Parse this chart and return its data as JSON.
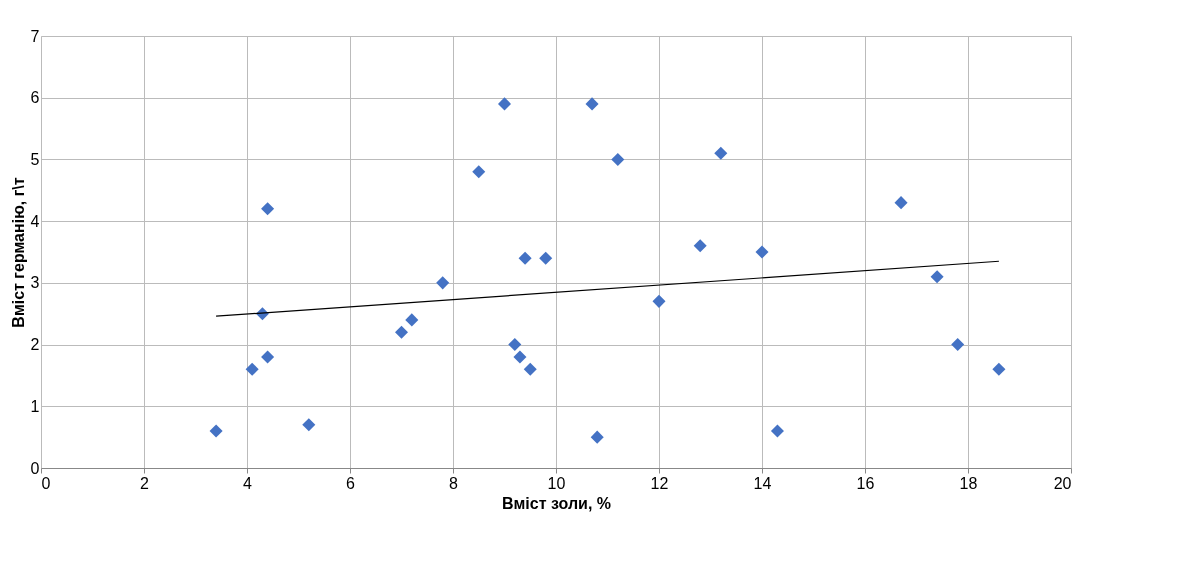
{
  "chart_data": {
    "type": "scatter",
    "xlabel": "Вміст золи, %",
    "ylabel": "Вміст германію, г\\т",
    "x": [
      3.4,
      4.1,
      4.3,
      4.4,
      4.4,
      5.2,
      7.0,
      7.2,
      7.8,
      8.5,
      9.0,
      9.2,
      9.3,
      9.4,
      9.5,
      9.8,
      10.7,
      10.8,
      11.2,
      12.0,
      12.8,
      13.2,
      14.0,
      14.3,
      16.7,
      17.4,
      17.8,
      18.6
    ],
    "series": [
      {
        "color": "#4472c4",
        "marker": "diamond",
        "values": [
          0.6,
          1.6,
          2.5,
          1.8,
          4.2,
          0.7,
          2.2,
          2.4,
          3.0,
          4.8,
          5.9,
          2.0,
          1.8,
          3.4,
          1.6,
          3.4,
          5.9,
          0.5,
          5.0,
          2.7,
          3.6,
          5.1,
          3.5,
          0.6,
          4.3,
          3.1,
          2.0,
          1.6
        ]
      },
      {
        "type": "line",
        "color": "#000000",
        "x": [
          3.4,
          18.6
        ],
        "values": [
          2.46,
          3.35
        ],
        "marker": "none",
        "line_style": "solid"
      }
    ],
    "xlim": [
      0,
      20
    ],
    "xticks": [
      0,
      2,
      4,
      6,
      8,
      10,
      12,
      14,
      16,
      18,
      20
    ],
    "ylim": [
      0,
      7
    ],
    "yticks": [
      0,
      1,
      2,
      3,
      4,
      5,
      6,
      7
    ],
    "grid": true
  }
}
